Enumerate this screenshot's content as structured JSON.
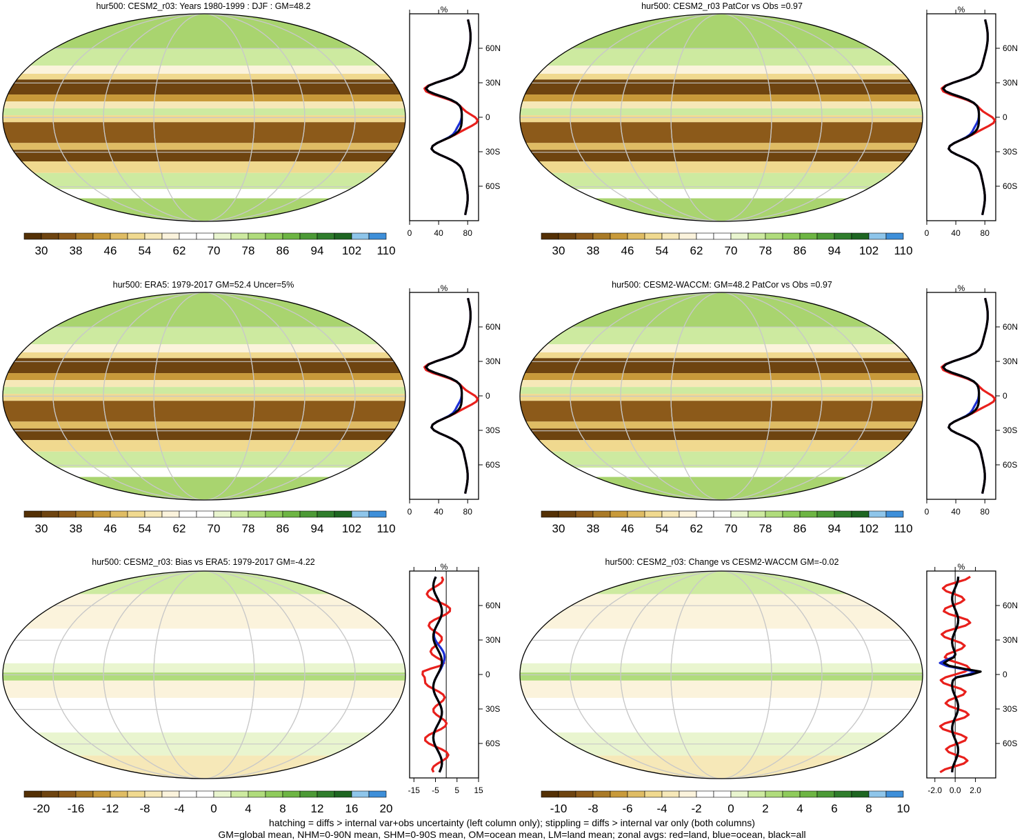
{
  "panels": [
    {
      "title": "hur500: CESM2_r03: Years 1980-1999 : DJF : GM=48.2",
      "kind": "abs",
      "colorbar": {
        "labels": [
          "30",
          "38",
          "46",
          "54",
          "62",
          "70",
          "78",
          "86",
          "94",
          "102",
          "110"
        ],
        "colors": [
          "#543005",
          "#6e4410",
          "#8c5a1a",
          "#a97a27",
          "#c89a3a",
          "#dfbc64",
          "#f0d98f",
          "#f6e8b8",
          "#fbf3dc",
          "#ffffff",
          "#ffffff",
          "#e9f5cf",
          "#cdeaa0",
          "#b0dc7c",
          "#8fcb5c",
          "#6db543",
          "#4c9a36",
          "#2f7d2c",
          "#1e6622",
          "#8ec5ea",
          "#3e8fd9"
        ]
      },
      "zonal_xticks": [
        "0",
        "40",
        "80"
      ],
      "zonal_unit": "%",
      "lat_labels": [
        "60N",
        "30N",
        "0",
        "30S",
        "60S"
      ]
    },
    {
      "title": "hur500: CESM2_r03 PatCor vs Obs =0.97",
      "kind": "abs",
      "colorbar": {
        "labels": [
          "30",
          "38",
          "46",
          "54",
          "62",
          "70",
          "78",
          "86",
          "94",
          "102",
          "110"
        ],
        "colors": [
          "#543005",
          "#6e4410",
          "#8c5a1a",
          "#a97a27",
          "#c89a3a",
          "#dfbc64",
          "#f0d98f",
          "#f6e8b8",
          "#fbf3dc",
          "#ffffff",
          "#ffffff",
          "#e9f5cf",
          "#cdeaa0",
          "#b0dc7c",
          "#8fcb5c",
          "#6db543",
          "#4c9a36",
          "#2f7d2c",
          "#1e6622",
          "#8ec5ea",
          "#3e8fd9"
        ]
      },
      "zonal_xticks": [
        "0",
        "40",
        "80"
      ],
      "zonal_unit": "%",
      "lat_labels": [
        "60N",
        "30N",
        "0",
        "30S",
        "60S"
      ]
    },
    {
      "title": "hur500: ERA5: 1979-2017 GM=52.4 Uncer=5%",
      "kind": "abs",
      "colorbar": {
        "labels": [
          "30",
          "38",
          "46",
          "54",
          "62",
          "70",
          "78",
          "86",
          "94",
          "102",
          "110"
        ],
        "colors": [
          "#543005",
          "#6e4410",
          "#8c5a1a",
          "#a97a27",
          "#c89a3a",
          "#dfbc64",
          "#f0d98f",
          "#f6e8b8",
          "#fbf3dc",
          "#ffffff",
          "#ffffff",
          "#e9f5cf",
          "#cdeaa0",
          "#b0dc7c",
          "#8fcb5c",
          "#6db543",
          "#4c9a36",
          "#2f7d2c",
          "#1e6622",
          "#8ec5ea",
          "#3e8fd9"
        ]
      },
      "zonal_xticks": [
        "0",
        "40",
        "80"
      ],
      "zonal_unit": "%",
      "lat_labels": [
        "60N",
        "30N",
        "0",
        "30S",
        "60S"
      ]
    },
    {
      "title": "hur500: CESM2-WACCM: GM=48.2 PatCor vs Obs =0.97",
      "kind": "abs",
      "colorbar": {
        "labels": [
          "30",
          "38",
          "46",
          "54",
          "62",
          "70",
          "78",
          "86",
          "94",
          "102",
          "110"
        ],
        "colors": [
          "#543005",
          "#6e4410",
          "#8c5a1a",
          "#a97a27",
          "#c89a3a",
          "#dfbc64",
          "#f0d98f",
          "#f6e8b8",
          "#fbf3dc",
          "#ffffff",
          "#ffffff",
          "#e9f5cf",
          "#cdeaa0",
          "#b0dc7c",
          "#8fcb5c",
          "#6db543",
          "#4c9a36",
          "#2f7d2c",
          "#1e6622",
          "#8ec5ea",
          "#3e8fd9"
        ]
      },
      "zonal_xticks": [
        "0",
        "40",
        "80"
      ],
      "zonal_unit": "%",
      "lat_labels": [
        "60N",
        "30N",
        "0",
        "30S",
        "60S"
      ]
    },
    {
      "title": "hur500: CESM2_r03: Bias vs ERA5: 1979-2017 GM=-4.22",
      "kind": "diff",
      "colorbar": {
        "labels": [
          "-20",
          "-16",
          "-12",
          "-8",
          "-4",
          "0",
          "4",
          "8",
          "12",
          "16",
          "20"
        ],
        "colors": [
          "#543005",
          "#6e4410",
          "#8c5a1a",
          "#a97a27",
          "#c89a3a",
          "#dfbc64",
          "#f0d98f",
          "#f6e8b8",
          "#fbf3dc",
          "#ffffff",
          "#ffffff",
          "#e9f5cf",
          "#cdeaa0",
          "#b0dc7c",
          "#8fcb5c",
          "#6db543",
          "#4c9a36",
          "#2f7d2c",
          "#1e6622",
          "#8ec5ea",
          "#3e8fd9"
        ]
      },
      "zonal_xticks": [
        "-15",
        "-5",
        "5",
        "15"
      ],
      "zonal_unit": "%",
      "lat_labels": [
        "60N",
        "30N",
        "0",
        "30S",
        "60S"
      ]
    },
    {
      "title": "hur500: CESM2_r03: Change vs CESM2-WACCM GM=-0.02",
      "kind": "diff",
      "colorbar": {
        "labels": [
          "-10",
          "-8",
          "-6",
          "-4",
          "-2",
          "0",
          "2",
          "4",
          "6",
          "8",
          "10"
        ],
        "colors": [
          "#543005",
          "#6e4410",
          "#8c5a1a",
          "#a97a27",
          "#c89a3a",
          "#dfbc64",
          "#f0d98f",
          "#f6e8b8",
          "#fbf3dc",
          "#ffffff",
          "#ffffff",
          "#e9f5cf",
          "#cdeaa0",
          "#b0dc7c",
          "#8fcb5c",
          "#6db543",
          "#4c9a36",
          "#2f7d2c",
          "#1e6622",
          "#8ec5ea",
          "#3e8fd9"
        ]
      },
      "zonal_xticks": [
        "-2.0",
        "0.0",
        "2.0"
      ],
      "zonal_unit": "%",
      "lat_labels": [
        "60N",
        "30N",
        "0",
        "30S",
        "60S"
      ]
    }
  ],
  "footer": {
    "line1": "hatching = diffs > internal var+obs uncertainty (left column only); stippling = diffs > internal var only (both columns)",
    "line2": "GM=global mean, NHM=0-90N mean, SHM=0-90S mean, OM=ocean mean, LM=land mean; zonal avgs: red=land, blue=ocean, black=all"
  },
  "colors": {
    "land": "#e8201c",
    "ocean": "#1c2fd4",
    "all": "#000000"
  }
}
